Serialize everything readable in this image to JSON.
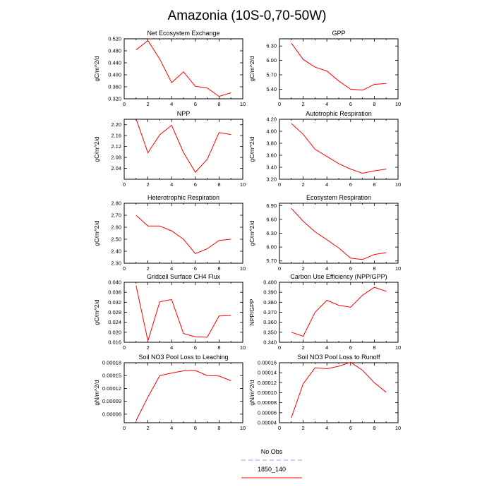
{
  "title": "Amazonia (10S-0,70-50W)",
  "legend": {
    "placement": "bottom-center",
    "entries": [
      {
        "label": "No Obs",
        "color": "#9999ff",
        "dash": true
      },
      {
        "label": "1850_140",
        "color": "#ff0000",
        "dash": false
      }
    ]
  },
  "chart_data": [
    {
      "type": "line",
      "title": "Net Ecosystem Exchange",
      "ylabel": "gC/m^2/d",
      "xlim": [
        0,
        10
      ],
      "xticks": [
        0,
        2,
        4,
        6,
        8,
        10
      ],
      "ylim": [
        0.32,
        0.52
      ],
      "ytick_values": [
        0.32,
        0.36,
        0.4,
        0.44,
        0.48,
        0.52
      ],
      "ytick_labels": [
        "0.320",
        "0.360",
        "0.400",
        "0.440",
        "0.480",
        "0.520"
      ],
      "x": [
        1,
        2,
        3,
        4,
        5,
        6,
        7,
        8,
        9
      ],
      "series": [
        {
          "color": "#ff0000",
          "values": [
            0.483,
            0.514,
            0.452,
            0.374,
            0.41,
            0.362,
            0.356,
            0.328,
            0.34
          ]
        }
      ]
    },
    {
      "type": "line",
      "title": "GPP",
      "ylabel": "gC/m^2/d",
      "xlim": [
        0,
        10
      ],
      "xticks": [
        0,
        2,
        4,
        6,
        8,
        10
      ],
      "ylim": [
        5.2,
        6.45
      ],
      "ytick_values": [
        5.4,
        5.7,
        6.0,
        6.3
      ],
      "ytick_labels": [
        "5.40",
        "5.70",
        "6.00",
        "6.30"
      ],
      "x": [
        1,
        2,
        3,
        4,
        5,
        6,
        7,
        8,
        9
      ],
      "series": [
        {
          "color": "#ff0000",
          "values": [
            6.36,
            6.02,
            5.86,
            5.78,
            5.57,
            5.4,
            5.38,
            5.5,
            5.52
          ]
        }
      ]
    },
    {
      "type": "line",
      "title": "NPP",
      "ylabel": "gC/m^2/d",
      "xlim": [
        0,
        10
      ],
      "xticks": [
        0,
        2,
        4,
        6,
        8,
        10
      ],
      "ylim": [
        2.0,
        2.22
      ],
      "ytick_values": [
        2.04,
        2.08,
        2.12,
        2.16,
        2.2
      ],
      "ytick_labels": [
        "2.04",
        "2.08",
        "2.12",
        "2.16",
        "2.20"
      ],
      "x": [
        1,
        2,
        3,
        4,
        5,
        6,
        7,
        8,
        9
      ],
      "series": [
        {
          "color": "#ff0000",
          "values": [
            2.222,
            2.097,
            2.163,
            2.198,
            2.098,
            2.026,
            2.073,
            2.171,
            2.164
          ]
        }
      ]
    },
    {
      "type": "line",
      "title": "Autotrophic Respiration",
      "ylabel": "gC/m^2/d",
      "xlim": [
        0,
        10
      ],
      "xticks": [
        0,
        2,
        4,
        6,
        8,
        10
      ],
      "ylim": [
        3.2,
        4.2
      ],
      "ytick_values": [
        3.2,
        3.4,
        3.6,
        3.8,
        4.0,
        4.2
      ],
      "ytick_labels": [
        "3.20",
        "3.40",
        "3.60",
        "3.80",
        "4.00",
        "4.20"
      ],
      "x": [
        1,
        2,
        3,
        4,
        5,
        6,
        7,
        8,
        9
      ],
      "series": [
        {
          "color": "#ff0000",
          "values": [
            4.13,
            3.95,
            3.7,
            3.58,
            3.46,
            3.37,
            3.3,
            3.34,
            3.37
          ]
        }
      ]
    },
    {
      "type": "line",
      "title": "Heterotrophic Respiration",
      "ylabel": "gC/m^2/d",
      "xlim": [
        0,
        10
      ],
      "xticks": [
        0,
        2,
        4,
        6,
        8,
        10
      ],
      "ylim": [
        2.3,
        2.8
      ],
      "ytick_values": [
        2.3,
        2.4,
        2.5,
        2.6,
        2.7,
        2.8
      ],
      "ytick_labels": [
        "2.30",
        "2.40",
        "2.50",
        "2.60",
        "2.70",
        "2.80"
      ],
      "x": [
        1,
        2,
        3,
        4,
        5,
        6,
        7,
        8,
        9
      ],
      "series": [
        {
          "color": "#ff0000",
          "values": [
            2.7,
            2.61,
            2.61,
            2.57,
            2.5,
            2.38,
            2.42,
            2.49,
            2.5
          ]
        }
      ]
    },
    {
      "type": "line",
      "title": "Ecosystem Respiration",
      "ylabel": "gC/m^2/d",
      "xlim": [
        0,
        10
      ],
      "xticks": [
        0,
        2,
        4,
        6,
        8,
        10
      ],
      "ylim": [
        5.65,
        6.95
      ],
      "ytick_values": [
        5.7,
        6.0,
        6.3,
        6.6,
        6.9
      ],
      "ytick_labels": [
        "5.70",
        "6.00",
        "6.30",
        "6.60",
        "6.90"
      ],
      "x": [
        1,
        2,
        3,
        4,
        5,
        6,
        7,
        8,
        9
      ],
      "series": [
        {
          "color": "#ff0000",
          "values": [
            6.84,
            6.56,
            6.33,
            6.16,
            5.98,
            5.76,
            5.73,
            5.84,
            5.88
          ]
        }
      ]
    },
    {
      "type": "line",
      "title": "Gridcell Surface CH4 Flux",
      "ylabel": "gC/m^2/d",
      "xlim": [
        0,
        10
      ],
      "xticks": [
        0,
        2,
        4,
        6,
        8,
        10
      ],
      "ylim": [
        0.016,
        0.04
      ],
      "ytick_values": [
        0.016,
        0.02,
        0.024,
        0.028,
        0.032,
        0.036,
        0.04
      ],
      "ytick_labels": [
        "0.016",
        "0.020",
        "0.024",
        "0.028",
        "0.032",
        "0.036",
        "0.040"
      ],
      "x": [
        1,
        2,
        3,
        4,
        5,
        6,
        7,
        8,
        9
      ],
      "series": [
        {
          "color": "#ff0000",
          "values": [
            0.0387,
            0.0165,
            0.0322,
            0.0331,
            0.0195,
            0.0182,
            0.018,
            0.0265,
            0.0267
          ]
        }
      ]
    },
    {
      "type": "line",
      "title": "Carbon Use Efficiency (NPP/GPP)",
      "ylabel": "NPP/GPP",
      "xlim": [
        0,
        10
      ],
      "xticks": [
        0,
        2,
        4,
        6,
        8,
        10
      ],
      "ylim": [
        0.34,
        0.4
      ],
      "ytick_values": [
        0.34,
        0.35,
        0.36,
        0.37,
        0.38,
        0.39,
        0.4
      ],
      "ytick_labels": [
        "0.340",
        "0.350",
        "0.360",
        "0.370",
        "0.380",
        "0.390",
        "0.400"
      ],
      "x": [
        1,
        2,
        3,
        4,
        5,
        6,
        7,
        8,
        9
      ],
      "series": [
        {
          "color": "#ff0000",
          "values": [
            0.35,
            0.346,
            0.37,
            0.382,
            0.377,
            0.375,
            0.387,
            0.395,
            0.391
          ]
        }
      ]
    },
    {
      "type": "line",
      "title": "Soil NO3 Pool Loss to Leaching",
      "ylabel": "gN/m^2/d",
      "xlim": [
        0,
        10
      ],
      "xticks": [
        0,
        2,
        4,
        6,
        8,
        10
      ],
      "ylim": [
        4e-05,
        0.00018
      ],
      "ytick_values": [
        6e-05,
        9e-05,
        0.00012,
        0.00015,
        0.00018
      ],
      "ytick_labels": [
        "0.00006",
        "0.00009",
        "0.00012",
        "0.00015",
        "0.00018"
      ],
      "x": [
        1,
        2,
        3,
        4,
        5,
        6,
        7,
        8,
        9
      ],
      "series": [
        {
          "color": "#ff0000",
          "values": [
            4.5e-05,
            0.0001,
            0.00015,
            0.000156,
            0.000161,
            0.000162,
            0.00015,
            0.000149,
            0.000138
          ]
        }
      ]
    },
    {
      "type": "line",
      "title": "Soil NO3 Pool Loss to Runoff",
      "ylabel": "gN/m^2/d",
      "xlim": [
        0,
        10
      ],
      "xticks": [
        0,
        2,
        4,
        6,
        8,
        10
      ],
      "ylim": [
        4e-05,
        0.00016
      ],
      "ytick_values": [
        4e-05,
        6e-05,
        8e-05,
        0.0001,
        0.00012,
        0.00014,
        0.00016
      ],
      "ytick_labels": [
        "0.00004",
        "0.00006",
        "0.00008",
        "0.00010",
        "0.00012",
        "0.00014",
        "0.00016"
      ],
      "x": [
        1,
        2,
        3,
        4,
        5,
        6,
        7,
        8,
        9
      ],
      "series": [
        {
          "color": "#ff0000",
          "values": [
            5e-05,
            0.000118,
            0.00015,
            0.000148,
            0.000153,
            0.000161,
            0.000145,
            0.00012,
            0.000101
          ]
        }
      ]
    }
  ]
}
